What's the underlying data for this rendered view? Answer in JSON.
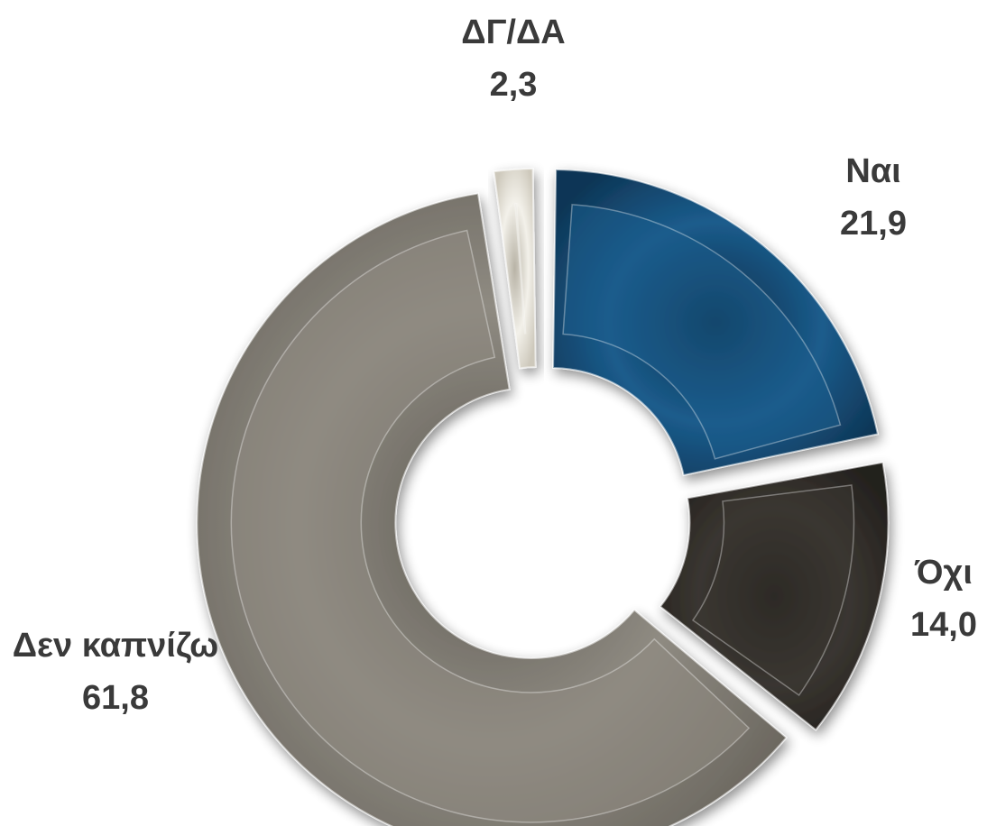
{
  "chart_data": {
    "type": "pie",
    "variant": "exploded-donut",
    "categories": [
      "Ναι",
      "Όχι",
      "Δεν καπνίζω",
      "ΔΓ/ΔΑ"
    ],
    "values": [
      21.9,
      14.0,
      61.8,
      2.3
    ],
    "value_labels": [
      "21,9",
      "14,0",
      "61,8",
      "2,3"
    ],
    "colors": [
      "#1b5c8c",
      "#3a3631",
      "#8f8b82",
      "#e6e3da"
    ],
    "legend": "none"
  }
}
